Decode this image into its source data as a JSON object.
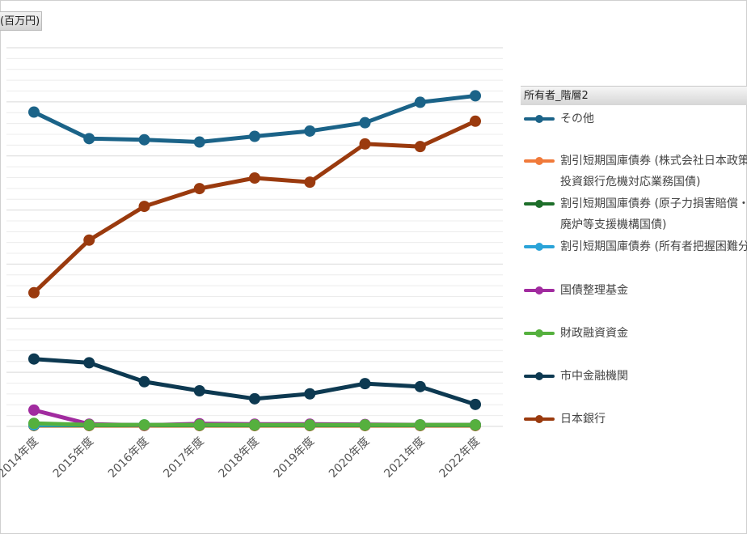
{
  "y_unit_label": "(百万円)",
  "legend": {
    "title": "所有者_階層2"
  },
  "chart_data": {
    "type": "line",
    "categories": [
      "2014年度",
      "2015年度",
      "2016年度",
      "2017年度",
      "2018年度",
      "2019年度",
      "2020年度",
      "2021年度",
      "2022年度"
    ],
    "ylim": [
      0,
      100
    ],
    "grid": true,
    "legend_position": "right",
    "series": [
      {
        "name": "その他",
        "color": "#1b6388",
        "values": [
          83,
          76,
          75.7,
          75.1,
          76.6,
          78,
          80.2,
          85.6,
          87.3
        ]
      },
      {
        "name": "割引短期国庫債券 (株式会社日本政策投資銀行危機対応業務国債)",
        "color": "#f07a3a",
        "values": [
          0.2,
          0.2,
          0.2,
          0.2,
          0.2,
          0.2,
          0.2,
          0.2,
          0.2
        ]
      },
      {
        "name": "割引短期国庫債券 (原子力損害賠償・廃炉等支援機構国債)",
        "color": "#1d6e2a",
        "values": [
          0.3,
          0.3,
          0.3,
          0.3,
          0.3,
          0.3,
          0.3,
          0.3,
          0.3
        ]
      },
      {
        "name": "割引短期国庫債券 (所有者把握困難分)",
        "color": "#2aa3d8",
        "values": [
          0.4,
          0.4,
          0.4,
          0.4,
          0.4,
          0.4,
          0.4,
          0.4,
          0.4
        ]
      },
      {
        "name": "国債整理基金",
        "color": "#a12b9f",
        "values": [
          4.3,
          0.6,
          0.3,
          0.7,
          0.6,
          0.6,
          0.5,
          0.4,
          0.4
        ]
      },
      {
        "name": "財政融資資金",
        "color": "#55b03e",
        "values": [
          0.8,
          0.4,
          0.4,
          0.4,
          0.4,
          0.4,
          0.4,
          0.4,
          0.4
        ]
      },
      {
        "name": "市中金融機関",
        "color": "#0d3951",
        "values": [
          17.8,
          16.8,
          11.8,
          9.4,
          7.3,
          8.6,
          11.3,
          10.5,
          5.8
        ]
      },
      {
        "name": "日本銀行",
        "color": "#9a3a0e",
        "values": [
          35.3,
          49.2,
          58.1,
          62.8,
          65.6,
          64.5,
          74.6,
          73.9,
          80.6
        ]
      }
    ]
  }
}
